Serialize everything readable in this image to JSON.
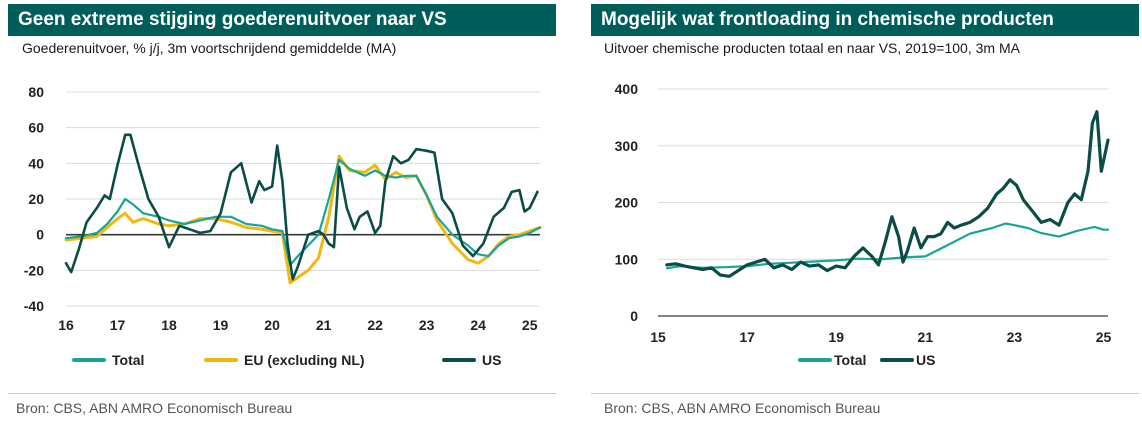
{
  "colors": {
    "total": "#1aa396",
    "eu": "#f2b811",
    "us": "#0b4d46",
    "title_bg": "#005e5a"
  },
  "left": {
    "title": "Geen extreme stijging goederenuitvoer naar VS",
    "subtitle": "Goederenuitvoer, % j/j, 3m voortschrijdend gemiddelde (MA)",
    "source": "Bron: CBS, ABN AMRO Economisch Bureau"
  },
  "right": {
    "title": "Mogelijk wat frontloading in chemische producten",
    "subtitle": "Uitvoer chemische producten totaal en naar VS, 2019=100, 3m MA",
    "source": "Bron: CBS, ABN AMRO Economisch Bureau"
  },
  "chart_data": [
    {
      "type": "line",
      "title": "Geen extreme stijging goederenuitvoer naar VS",
      "ylabel": "Goederenuitvoer, % j/j, 3m MA",
      "xlim": [
        16,
        25.2
      ],
      "ylim": [
        -40,
        80
      ],
      "yticks": [
        80,
        60,
        40,
        20,
        0,
        -20,
        -40
      ],
      "xticks": [
        16,
        17,
        18,
        19,
        20,
        21,
        22,
        23,
        24,
        25
      ],
      "xtick_labels": [
        "16",
        "17",
        "18",
        "19",
        "20",
        "21",
        "22",
        "23",
        "24",
        "25"
      ],
      "ytick_labels": [
        "80",
        "60",
        "40",
        "20",
        "0",
        "-20",
        "-40"
      ],
      "legend": [
        "Total",
        "EU (excluding NL)",
        "US"
      ],
      "series": [
        {
          "name": "Total",
          "color_key": "total",
          "x": [
            16.0,
            16.3,
            16.6,
            16.8,
            17.0,
            17.15,
            17.3,
            17.5,
            17.8,
            18.0,
            18.3,
            18.6,
            18.9,
            19.2,
            19.5,
            19.8,
            20.0,
            20.2,
            20.35,
            20.5,
            20.7,
            20.9,
            21.1,
            21.3,
            21.5,
            21.8,
            22.0,
            22.2,
            22.4,
            22.6,
            22.8,
            23.0,
            23.2,
            23.5,
            23.8,
            24.0,
            24.2,
            24.4,
            24.6,
            24.8,
            25.0,
            25.2
          ],
          "y": [
            -2,
            -1,
            1,
            6,
            13,
            20,
            17,
            12,
            10,
            8,
            6,
            8,
            10,
            10,
            6,
            5,
            3,
            2,
            -17,
            -12,
            -6,
            0,
            20,
            42,
            37,
            33,
            36,
            33,
            32,
            33,
            33,
            22,
            10,
            0,
            -6,
            -11,
            -12,
            -6,
            -2,
            -1,
            1,
            4
          ]
        },
        {
          "name": "EU (excluding NL)",
          "color_key": "eu",
          "x": [
            16.0,
            16.3,
            16.6,
            16.8,
            17.0,
            17.15,
            17.3,
            17.5,
            17.8,
            18.0,
            18.3,
            18.6,
            18.9,
            19.2,
            19.5,
            19.8,
            20.0,
            20.2,
            20.35,
            20.5,
            20.7,
            20.9,
            21.1,
            21.3,
            21.5,
            21.8,
            22.0,
            22.2,
            22.4,
            22.6,
            22.8,
            23.0,
            23.2,
            23.5,
            23.8,
            24.0,
            24.2,
            24.4,
            24.6,
            24.8,
            25.0,
            25.2
          ],
          "y": [
            -3,
            -2,
            -1,
            4,
            9,
            12,
            7,
            9,
            6,
            5,
            6,
            9,
            9,
            7,
            4,
            3,
            2,
            1,
            -27,
            -24,
            -20,
            -13,
            10,
            44,
            36,
            35,
            39,
            31,
            35,
            32,
            33,
            22,
            8,
            -5,
            -14,
            -16,
            -12,
            -5,
            -1,
            0,
            2,
            4
          ]
        },
        {
          "name": "US",
          "color_key": "us",
          "x": [
            16.0,
            16.1,
            16.25,
            16.4,
            16.6,
            16.75,
            16.85,
            17.0,
            17.15,
            17.25,
            17.4,
            17.6,
            17.8,
            18.0,
            18.2,
            18.4,
            18.6,
            18.8,
            19.0,
            19.2,
            19.4,
            19.6,
            19.75,
            19.85,
            20.0,
            20.1,
            20.2,
            20.3,
            20.4,
            20.5,
            20.7,
            20.9,
            21.0,
            21.1,
            21.2,
            21.3,
            21.45,
            21.6,
            21.7,
            21.85,
            22.0,
            22.1,
            22.2,
            22.35,
            22.5,
            22.65,
            22.8,
            23.0,
            23.15,
            23.3,
            23.5,
            23.7,
            23.9,
            24.1,
            24.3,
            24.5,
            24.65,
            24.8,
            24.9,
            25.0,
            25.15
          ],
          "y": [
            -16,
            -21,
            -8,
            7,
            15,
            22,
            20,
            39,
            56,
            56,
            40,
            20,
            10,
            -7,
            5,
            3,
            1,
            2,
            12,
            35,
            40,
            18,
            30,
            25,
            27,
            50,
            30,
            -5,
            -25,
            -18,
            0,
            2,
            0,
            -5,
            -7,
            38,
            15,
            3,
            10,
            13,
            1,
            5,
            30,
            44,
            40,
            42,
            48,
            47,
            46,
            20,
            12,
            -6,
            -12,
            -5,
            10,
            15,
            24,
            25,
            13,
            15,
            24
          ]
        }
      ]
    },
    {
      "type": "line",
      "title": "Mogelijk wat frontloading in chemische producten",
      "ylabel": "Uitvoer chemische producten, 2019=100, 3m MA",
      "xlim": [
        15,
        25.1
      ],
      "ylim": [
        0,
        400
      ],
      "yticks": [
        400,
        300,
        200,
        100,
        0
      ],
      "xticks": [
        15,
        17,
        19,
        21,
        23,
        25
      ],
      "xtick_labels": [
        "15",
        "17",
        "19",
        "21",
        "23",
        "25"
      ],
      "ytick_labels": [
        "400",
        "300",
        "200",
        "100",
        "0"
      ],
      "legend": [
        "Total",
        "US"
      ],
      "series": [
        {
          "name": "Total",
          "color_key": "total",
          "x": [
            15.2,
            15.5,
            16.0,
            16.5,
            17.0,
            17.5,
            18.0,
            18.5,
            19.0,
            19.5,
            20.0,
            20.5,
            21.0,
            21.5,
            22.0,
            22.5,
            22.8,
            23.0,
            23.3,
            23.6,
            24.0,
            24.4,
            24.8,
            25.0,
            25.1
          ],
          "y": [
            84,
            88,
            85,
            86,
            88,
            92,
            94,
            96,
            98,
            101,
            100,
            103,
            105,
            125,
            145,
            155,
            163,
            160,
            155,
            146,
            140,
            150,
            157,
            152,
            152
          ]
        },
        {
          "name": "US",
          "color_key": "us",
          "x": [
            15.2,
            15.4,
            15.6,
            15.8,
            16.0,
            16.2,
            16.4,
            16.6,
            16.8,
            17.0,
            17.2,
            17.4,
            17.6,
            17.8,
            18.0,
            18.2,
            18.4,
            18.6,
            18.8,
            19.0,
            19.2,
            19.4,
            19.6,
            19.8,
            19.95,
            20.1,
            20.25,
            20.4,
            20.5,
            20.6,
            20.75,
            20.9,
            21.05,
            21.2,
            21.35,
            21.5,
            21.65,
            21.8,
            22.0,
            22.2,
            22.4,
            22.6,
            22.75,
            22.9,
            23.05,
            23.2,
            23.4,
            23.6,
            23.8,
            24.0,
            24.2,
            24.35,
            24.5,
            24.65,
            24.75,
            24.85,
            24.95,
            25.1
          ],
          "y": [
            90,
            92,
            88,
            85,
            82,
            85,
            72,
            70,
            80,
            90,
            95,
            100,
            85,
            90,
            82,
            95,
            88,
            90,
            80,
            88,
            85,
            105,
            120,
            105,
            90,
            130,
            175,
            140,
            95,
            115,
            155,
            120,
            140,
            140,
            145,
            165,
            155,
            160,
            165,
            175,
            190,
            215,
            225,
            240,
            230,
            205,
            185,
            165,
            170,
            160,
            200,
            215,
            205,
            255,
            340,
            360,
            255,
            310
          ]
        }
      ]
    }
  ]
}
